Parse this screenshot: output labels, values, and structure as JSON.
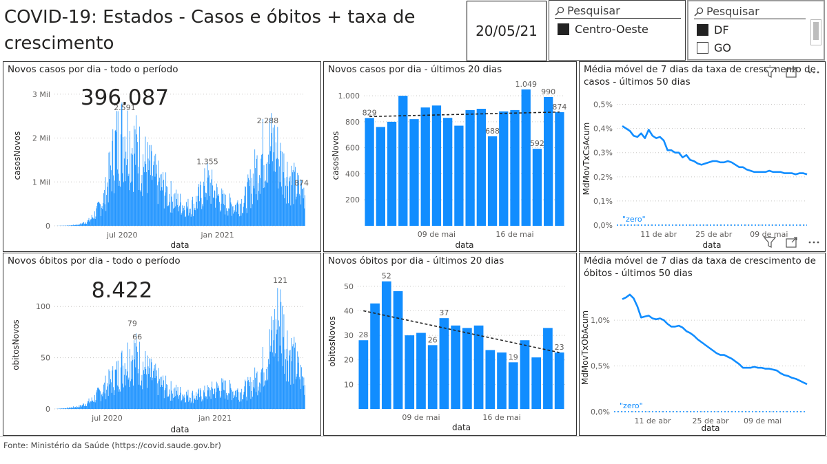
{
  "header": {
    "title": "COVID-19: Estados - Casos e óbitos + taxa de crescimento",
    "date": "20/05/21"
  },
  "slicer_region": {
    "search_placeholder": "Pesquisar",
    "items": [
      {
        "label": "Centro-Oeste",
        "checked": true
      }
    ]
  },
  "slicer_state": {
    "search_placeholder": "Pesquisar",
    "items": [
      {
        "label": "DF",
        "checked": true
      },
      {
        "label": "GO",
        "checked": false
      }
    ]
  },
  "footer": "Fonte: Ministério da Saúde (https://covid.saude.gov.br)",
  "chart_data": [
    {
      "id": "casos_total",
      "type": "bar",
      "title": "Novos casos por dia - todo o período",
      "card_value": "396.087",
      "xlabel": "data",
      "ylabel": "casosNovos",
      "ylim": [
        0,
        3200
      ],
      "yticks": [
        {
          "v": 0,
          "label": "0"
        },
        {
          "v": 1000,
          "label": "1 Mil"
        },
        {
          "v": 2000,
          "label": "2 Mil"
        },
        {
          "v": 3000,
          "label": "3 Mil"
        }
      ],
      "xticks": [
        {
          "x": 0.27,
          "label": "jul 2020"
        },
        {
          "x": 0.65,
          "label": "jan 2021"
        }
      ],
      "annotations": [
        {
          "x": 0.28,
          "v": 2591,
          "label": "2.591"
        },
        {
          "x": 0.61,
          "v": 1355,
          "label": "1.355"
        },
        {
          "x": 0.85,
          "v": 2288,
          "label": "2.288"
        },
        {
          "x": 0.985,
          "v": 874,
          "label": "874"
        }
      ],
      "envelope": [
        [
          0,
          0
        ],
        [
          0.06,
          10
        ],
        [
          0.1,
          40
        ],
        [
          0.14,
          150
        ],
        [
          0.17,
          400
        ],
        [
          0.2,
          800
        ],
        [
          0.22,
          1400
        ],
        [
          0.24,
          2100
        ],
        [
          0.26,
          2400
        ],
        [
          0.28,
          2500
        ],
        [
          0.31,
          2200
        ],
        [
          0.34,
          1900
        ],
        [
          0.37,
          1600
        ],
        [
          0.41,
          1200
        ],
        [
          0.45,
          900
        ],
        [
          0.49,
          650
        ],
        [
          0.53,
          500
        ],
        [
          0.56,
          600
        ],
        [
          0.59,
          900
        ],
        [
          0.61,
          1200
        ],
        [
          0.64,
          900
        ],
        [
          0.68,
          600
        ],
        [
          0.72,
          550
        ],
        [
          0.76,
          700
        ],
        [
          0.79,
          1200
        ],
        [
          0.82,
          1800
        ],
        [
          0.85,
          2200
        ],
        [
          0.88,
          2100
        ],
        [
          0.91,
          1600
        ],
        [
          0.94,
          1300
        ],
        [
          0.97,
          1000
        ],
        [
          1,
          900
        ]
      ],
      "color": "#118dff"
    },
    {
      "id": "casos_20",
      "type": "bar",
      "title": "Novos casos por dia - últimos 20 dias",
      "xlabel": "data",
      "ylabel": "casosNovos",
      "ylim": [
        0,
        1080
      ],
      "yticks": [
        {
          "v": 200,
          "label": "200"
        },
        {
          "v": 400,
          "label": "400"
        },
        {
          "v": 600,
          "label": "600"
        },
        {
          "v": 800,
          "label": "800"
        },
        {
          "v": 1000,
          "label": "1.000"
        }
      ],
      "xticks": [
        {
          "i": 6,
          "label": "09 de mai"
        },
        {
          "i": 13,
          "label": "16 de mai"
        }
      ],
      "values": [
        829,
        760,
        800,
        1000,
        820,
        910,
        925,
        830,
        770,
        890,
        900,
        688,
        880,
        890,
        1049,
        592,
        990,
        874
      ],
      "labels": {
        "0": "829",
        "11": "688",
        "14": "1.049",
        "15": "592",
        "16": "990",
        "17": "874"
      },
      "trend": [
        840,
        875
      ],
      "color": "#118dff"
    },
    {
      "id": "media_casos",
      "type": "line",
      "title": "Média móvel de 7 dias da taxa de crescimento de casos - últimos 50 dias",
      "xlabel": "data",
      "ylabel": "MdMovTxCsAcum",
      "ylim": [
        0,
        0.55
      ],
      "yticks": [
        {
          "v": 0,
          "label": "0,0%"
        },
        {
          "v": 0.1,
          "label": "0,1%"
        },
        {
          "v": 0.2,
          "label": "0,2%"
        },
        {
          "v": 0.3,
          "label": "0,3%"
        },
        {
          "v": 0.4,
          "label": "0,4%"
        },
        {
          "v": 0.5,
          "label": "0,5%"
        }
      ],
      "xticks": [
        {
          "x": 0.22,
          "label": "11 de abr"
        },
        {
          "x": 0.51,
          "label": "25 de abr"
        },
        {
          "x": 0.8,
          "label": "09 de mai"
        }
      ],
      "zero_label": "\"zero\"",
      "values": [
        0.41,
        0.4,
        0.39,
        0.37,
        0.365,
        0.38,
        0.36,
        0.395,
        0.37,
        0.36,
        0.365,
        0.35,
        0.31,
        0.31,
        0.3,
        0.3,
        0.28,
        0.29,
        0.27,
        0.265,
        0.255,
        0.25,
        0.255,
        0.26,
        0.265,
        0.265,
        0.26,
        0.26,
        0.265,
        0.26,
        0.25,
        0.24,
        0.24,
        0.23,
        0.225,
        0.22,
        0.22,
        0.22,
        0.22,
        0.225,
        0.22,
        0.22,
        0.22,
        0.215,
        0.215,
        0.215,
        0.21,
        0.215,
        0.215,
        0.21
      ],
      "color": "#118dff"
    },
    {
      "id": "obitos_total",
      "type": "bar",
      "title": "Novos óbitos por dia - todo o período",
      "card_value": "8.422",
      "xlabel": "data",
      "ylabel": "obitosNovos",
      "ylim": [
        0,
        125
      ],
      "yticks": [
        {
          "v": 0,
          "label": "0"
        },
        {
          "v": 50,
          "label": "50"
        },
        {
          "v": 100,
          "label": "100"
        }
      ],
      "xticks": [
        {
          "x": 0.21,
          "label": "jul 2020"
        },
        {
          "x": 0.64,
          "label": "jan 2021"
        }
      ],
      "annotations": [
        {
          "x": 0.31,
          "v": 79,
          "label": "79"
        },
        {
          "x": 0.33,
          "v": 66,
          "label": "66"
        },
        {
          "x": 0.9,
          "v": 121,
          "label": "121"
        }
      ],
      "envelope": [
        [
          0,
          0
        ],
        [
          0.05,
          1
        ],
        [
          0.1,
          3
        ],
        [
          0.15,
          10
        ],
        [
          0.2,
          25
        ],
        [
          0.25,
          40
        ],
        [
          0.28,
          55
        ],
        [
          0.31,
          65
        ],
        [
          0.34,
          55
        ],
        [
          0.38,
          40
        ],
        [
          0.42,
          30
        ],
        [
          0.46,
          22
        ],
        [
          0.5,
          18
        ],
        [
          0.54,
          15
        ],
        [
          0.58,
          16
        ],
        [
          0.62,
          20
        ],
        [
          0.66,
          25
        ],
        [
          0.7,
          22
        ],
        [
          0.74,
          20
        ],
        [
          0.78,
          25
        ],
        [
          0.82,
          40
        ],
        [
          0.86,
          70
        ],
        [
          0.88,
          90
        ],
        [
          0.9,
          110
        ],
        [
          0.92,
          80
        ],
        [
          0.95,
          60
        ],
        [
          0.98,
          40
        ],
        [
          1,
          30
        ]
      ],
      "color": "#118dff"
    },
    {
      "id": "obitos_20",
      "type": "bar",
      "title": "Novos óbitos por dia - últimos 20 dias",
      "xlabel": "data",
      "ylabel": "obitosNovos",
      "ylim": [
        0,
        55
      ],
      "yticks": [
        {
          "v": 10,
          "label": "10"
        },
        {
          "v": 20,
          "label": "20"
        },
        {
          "v": 30,
          "label": "30"
        },
        {
          "v": 40,
          "label": "40"
        },
        {
          "v": 50,
          "label": "50"
        }
      ],
      "xticks": [
        {
          "i": 5,
          "label": "09 de mai"
        },
        {
          "i": 12,
          "label": "16 de mai"
        }
      ],
      "values": [
        28,
        43,
        52,
        48,
        30,
        31,
        26,
        37,
        34,
        33,
        34,
        24,
        23,
        19,
        28,
        21,
        33,
        23
      ],
      "labels": {
        "0": "28",
        "2": "52",
        "6": "26",
        "7": "37",
        "13": "19",
        "17": "23"
      },
      "trend": [
        40,
        23
      ],
      "color": "#118dff"
    },
    {
      "id": "media_obitos",
      "type": "line",
      "title": "Média móvel de 7 dias da taxa de crescimento de óbitos - últimos 50 dias",
      "xlabel": "data",
      "ylabel": "MdMovTxObAcum",
      "ylim": [
        0,
        1.4
      ],
      "yticks": [
        {
          "v": 0,
          "label": "0,0%"
        },
        {
          "v": 0.5,
          "label": "0,5%"
        },
        {
          "v": 1.0,
          "label": "1,0%"
        }
      ],
      "xticks": [
        {
          "x": 0.2,
          "label": "11 de abr"
        },
        {
          "x": 0.5,
          "label": "25 de abr"
        },
        {
          "x": 0.77,
          "label": "09 de mai"
        }
      ],
      "zero_label": "\"zero\"",
      "values": [
        1.23,
        1.25,
        1.28,
        1.24,
        1.15,
        1.03,
        1.04,
        1.05,
        1.02,
        1.01,
        1.02,
        1.0,
        0.96,
        0.93,
        0.93,
        0.94,
        0.92,
        0.88,
        0.86,
        0.83,
        0.79,
        0.76,
        0.73,
        0.7,
        0.67,
        0.64,
        0.62,
        0.62,
        0.6,
        0.58,
        0.55,
        0.52,
        0.48,
        0.48,
        0.48,
        0.49,
        0.48,
        0.48,
        0.47,
        0.47,
        0.46,
        0.45,
        0.42,
        0.4,
        0.39,
        0.37,
        0.36,
        0.34,
        0.32,
        0.3
      ],
      "color": "#118dff"
    }
  ]
}
